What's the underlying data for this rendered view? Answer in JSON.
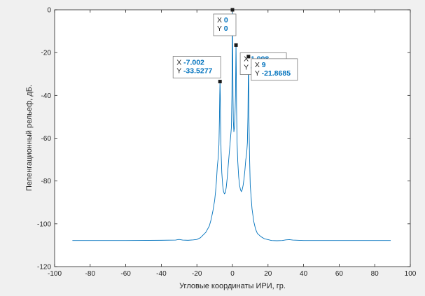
{
  "figure": {
    "background": "#f0f0f0",
    "plot_background": "#ffffff",
    "axis_color": "#262626",
    "line_color": "#0072bd"
  },
  "chart_data": {
    "type": "line",
    "title": "",
    "xlabel": "Угловые координаты ИРИ, гр.",
    "ylabel": "Пеленгационный рельеф, дБ.",
    "xlim": [
      -100,
      100
    ],
    "ylim": [
      -120,
      0
    ],
    "xticks": [
      -100,
      -80,
      -60,
      -40,
      -20,
      0,
      20,
      40,
      60,
      80,
      100
    ],
    "yticks": [
      0,
      -20,
      -40,
      -60,
      -80,
      -100,
      -120
    ],
    "xtick_labels": [
      "-100",
      "-80",
      "-60",
      "-40",
      "-20",
      "0",
      "20",
      "40",
      "60",
      "80",
      "100"
    ],
    "ytick_labels": [
      "0",
      "-20",
      "-40",
      "-60",
      "-80",
      "-100",
      "-120"
    ],
    "grid": false,
    "series": [
      {
        "x": [
          -90,
          -60,
          -40,
          -32,
          -30,
          -28,
          -25,
          -22,
          -20,
          -18,
          -15,
          -13,
          -12,
          -11,
          -10,
          -9.5,
          -9,
          -8.5,
          -8,
          -7.6,
          -7.3,
          -7.15,
          -7.002,
          -6.85,
          -6.7,
          -6.4,
          -6,
          -5.5,
          -5,
          -4.5,
          -4,
          -3.5,
          -3,
          -2.5,
          -2,
          -1.5,
          -1,
          -0.6,
          -0.3,
          -0.15,
          0,
          0.15,
          0.3,
          0.5,
          0.8,
          1.1,
          1.4,
          1.7,
          1.85,
          1.998,
          2.15,
          2.3,
          2.6,
          3,
          3.5,
          4,
          4.5,
          5,
          5.5,
          6,
          6.5,
          7,
          7.5,
          8,
          8.4,
          8.7,
          8.85,
          9,
          9.15,
          9.3,
          9.6,
          10,
          11,
          12,
          13,
          14,
          16,
          18,
          20,
          22,
          25,
          28,
          30,
          32,
          34,
          40,
          60,
          89
        ],
        "y": [
          -107.8,
          -107.8,
          -107.7,
          -107.6,
          -107.3,
          -107.6,
          -107.7,
          -107.5,
          -107.3,
          -106.5,
          -104,
          -101,
          -98,
          -94,
          -89,
          -85,
          -80,
          -73,
          -69,
          -63,
          -50,
          -40,
          -33.5277,
          -40,
          -52,
          -66,
          -76,
          -82,
          -85,
          -86,
          -85.5,
          -83,
          -79,
          -74,
          -69,
          -64,
          -59,
          -55,
          -40,
          -20,
          0,
          -20,
          -40,
          -52,
          -57,
          -55,
          -50,
          -40,
          -28,
          -16.4896,
          -28,
          -45,
          -62,
          -71,
          -78,
          -82,
          -84,
          -85,
          -84,
          -82,
          -79,
          -75,
          -70,
          -67,
          -62,
          -50,
          -35,
          -21.8685,
          -35,
          -52,
          -68,
          -82,
          -93,
          -99,
          -102.5,
          -104.5,
          -106,
          -107,
          -107.4,
          -107.8,
          -107.9,
          -107.8,
          -107.5,
          -107.4,
          -107.6,
          -107.8,
          -107.8,
          -107.8
        ]
      }
    ],
    "datatips": [
      {
        "x_label": "X",
        "x_value": "0",
        "y_label": "Y",
        "y_value": "0",
        "x": 0,
        "y": 0
      },
      {
        "x_label": "X",
        "x_value": "1.998",
        "y_label": "Y",
        "y_value": "-16.4896",
        "x": 1.998,
        "y": -16.4896
      },
      {
        "x_label": "X",
        "x_value": "-7.002",
        "y_label": "Y",
        "y_value": "-33.5277",
        "x": -7.002,
        "y": -33.5277
      },
      {
        "x_label": "X",
        "x_value": "9",
        "y_label": "Y",
        "y_value": "-21.8685",
        "x": 9,
        "y": -21.8685
      }
    ]
  }
}
